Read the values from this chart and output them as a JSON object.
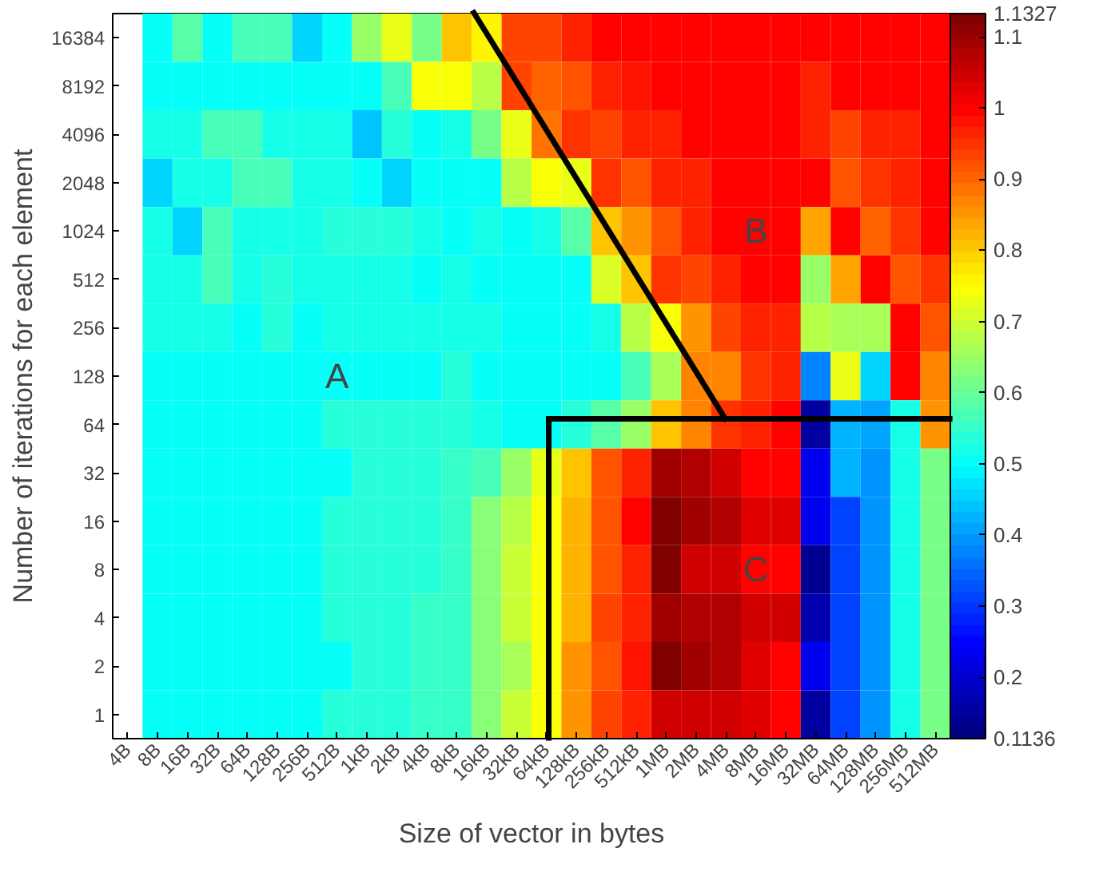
{
  "chart_data": {
    "type": "heatmap",
    "xlabel": "Size of vector in bytes",
    "ylabel": "Number of iterations for each element",
    "categories": [
      "4B",
      "8B",
      "16B",
      "32B",
      "64B",
      "128B",
      "256B",
      "512B",
      "1kB",
      "2kB",
      "4kB",
      "8kB",
      "16kB",
      "32kB",
      "64kB",
      "128kB",
      "256kB",
      "512kB",
      "1MB",
      "2MB",
      "4MB",
      "8MB",
      "16MB",
      "32MB",
      "64MB",
      "128MB",
      "256MB",
      "512MB"
    ],
    "y_categories": [
      "16384",
      "8192",
      "4096",
      "2048",
      "1024",
      "512",
      "256",
      "128",
      "64",
      "32",
      "16",
      "8",
      "4",
      "2",
      "1"
    ],
    "cells": [
      [
        null,
        0.5,
        0.58,
        0.5,
        0.56,
        0.56,
        0.46,
        0.5,
        0.64,
        0.72,
        0.61,
        0.81,
        0.76,
        0.93,
        0.93,
        0.96,
        0.99,
        0.99,
        1.0,
        1.0,
        1.0,
        1.0,
        1.0,
        0.99,
        1.0,
        1.0,
        1.0,
        1.0
      ],
      [
        null,
        0.5,
        0.5,
        0.5,
        0.5,
        0.5,
        0.5,
        0.5,
        0.5,
        0.57,
        0.75,
        0.74,
        0.68,
        0.93,
        0.9,
        0.91,
        0.97,
        0.98,
        1.0,
        1.0,
        1.0,
        1.0,
        1.0,
        0.97,
        0.99,
        1.0,
        1.0,
        1.0
      ],
      [
        null,
        0.52,
        0.52,
        0.56,
        0.56,
        0.52,
        0.52,
        0.52,
        0.44,
        0.53,
        0.5,
        0.52,
        0.61,
        0.72,
        0.88,
        0.95,
        0.93,
        0.97,
        0.97,
        0.99,
        1.0,
        1.0,
        1.0,
        0.97,
        0.93,
        0.96,
        0.97,
        0.99
      ],
      [
        null,
        0.46,
        0.52,
        0.52,
        0.56,
        0.56,
        0.52,
        0.52,
        0.5,
        0.46,
        0.5,
        0.5,
        0.5,
        0.68,
        0.75,
        0.72,
        0.95,
        0.91,
        0.96,
        0.97,
        0.99,
        1.0,
        1.0,
        1.0,
        0.91,
        0.95,
        0.97,
        0.99
      ],
      [
        null,
        0.52,
        0.46,
        0.56,
        0.52,
        0.52,
        0.52,
        0.54,
        0.54,
        0.54,
        0.52,
        0.5,
        0.52,
        0.5,
        0.52,
        0.58,
        0.8,
        0.86,
        0.91,
        0.96,
        0.99,
        1.0,
        1.0,
        0.84,
        1.0,
        0.9,
        0.95,
        0.99
      ],
      [
        null,
        0.52,
        0.52,
        0.56,
        0.52,
        0.54,
        0.52,
        0.52,
        0.52,
        0.52,
        0.5,
        0.52,
        0.5,
        0.5,
        0.5,
        0.5,
        0.71,
        0.8,
        0.95,
        0.93,
        0.96,
        1.0,
        0.99,
        0.65,
        0.84,
        1.0,
        0.91,
        0.95
      ],
      [
        null,
        0.52,
        0.52,
        0.52,
        0.5,
        0.54,
        0.5,
        0.52,
        0.52,
        0.52,
        0.52,
        0.52,
        0.52,
        0.5,
        0.5,
        0.5,
        0.52,
        0.68,
        0.75,
        0.86,
        0.93,
        0.96,
        0.97,
        0.68,
        0.66,
        0.66,
        1.0,
        0.91
      ],
      [
        null,
        0.51,
        0.51,
        0.51,
        0.51,
        0.51,
        0.51,
        0.51,
        0.51,
        0.51,
        0.51,
        0.53,
        0.51,
        0.5,
        0.5,
        0.5,
        0.5,
        0.57,
        0.66,
        0.87,
        0.87,
        0.95,
        0.97,
        0.37,
        0.72,
        0.46,
        1.0,
        0.87
      ],
      [
        null,
        0.51,
        0.51,
        0.51,
        0.51,
        0.51,
        0.51,
        0.53,
        0.53,
        0.53,
        0.53,
        0.53,
        0.52,
        0.5,
        0.51,
        0.54,
        0.58,
        0.65,
        0.8,
        0.87,
        0.95,
        0.97,
        0.99,
        0.15,
        0.43,
        0.41,
        0.52,
        0.86
      ],
      [
        null,
        0.51,
        0.51,
        0.51,
        0.51,
        0.51,
        0.51,
        0.51,
        0.53,
        0.53,
        0.53,
        0.55,
        0.57,
        0.64,
        0.72,
        0.81,
        0.91,
        0.97,
        1.1,
        1.07,
        1.05,
        1.0,
        1.0,
        0.24,
        0.43,
        0.4,
        0.52,
        0.61
      ],
      [
        null,
        0.51,
        0.51,
        0.51,
        0.51,
        0.51,
        0.51,
        0.53,
        0.53,
        0.53,
        0.53,
        0.55,
        0.63,
        0.68,
        0.74,
        0.83,
        0.91,
        0.99,
        1.12,
        1.1,
        1.07,
        1.03,
        1.03,
        0.24,
        0.32,
        0.4,
        0.52,
        0.61
      ],
      [
        null,
        0.51,
        0.51,
        0.51,
        0.51,
        0.51,
        0.51,
        0.53,
        0.53,
        0.53,
        0.53,
        0.55,
        0.63,
        0.69,
        0.75,
        0.83,
        0.91,
        0.96,
        1.12,
        1.05,
        1.05,
        1.0,
        1.0,
        0.13,
        0.32,
        0.4,
        0.52,
        0.61
      ],
      [
        null,
        0.51,
        0.51,
        0.51,
        0.51,
        0.51,
        0.51,
        0.53,
        0.53,
        0.53,
        0.55,
        0.55,
        0.63,
        0.69,
        0.75,
        0.83,
        0.93,
        0.97,
        1.1,
        1.08,
        1.07,
        1.05,
        1.05,
        0.17,
        0.32,
        0.4,
        0.52,
        0.61
      ],
      [
        null,
        0.51,
        0.51,
        0.51,
        0.51,
        0.51,
        0.51,
        0.51,
        0.53,
        0.53,
        0.55,
        0.55,
        0.63,
        0.67,
        0.75,
        0.86,
        0.91,
        0.98,
        1.13,
        1.1,
        1.07,
        1.03,
        0.99,
        0.24,
        0.32,
        0.4,
        0.52,
        0.61
      ],
      [
        null,
        0.51,
        0.51,
        0.51,
        0.51,
        0.51,
        0.51,
        0.53,
        0.53,
        0.53,
        0.55,
        0.55,
        0.63,
        0.69,
        0.75,
        0.86,
        0.93,
        0.96,
        1.05,
        1.05,
        1.05,
        1.03,
        1.0,
        0.15,
        0.32,
        0.4,
        0.52,
        0.61
      ]
    ],
    "clim": [
      0.1136,
      1.1327
    ],
    "cticks": [
      0.1136,
      0.2,
      0.3,
      0.4,
      0.5,
      0.6,
      0.7,
      0.8,
      0.9,
      1,
      1.1,
      1.1327
    ],
    "annotations": [
      "A",
      "B",
      "C"
    ]
  }
}
